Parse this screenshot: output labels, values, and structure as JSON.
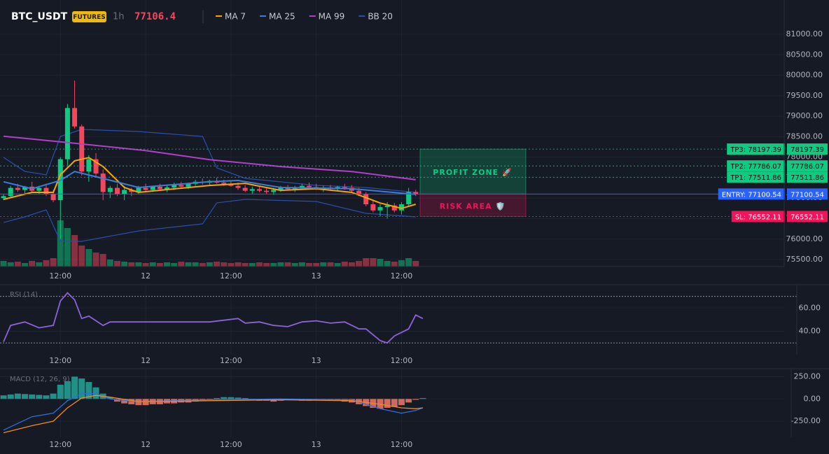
{
  "chart_data": [
    {
      "type": "candlestick",
      "title": "BTC_USDT",
      "badge": "FUTURES",
      "interval": "1h",
      "last_price": 77106.4,
      "up_color": "#0ecb81",
      "down_color": "#f6465d",
      "xlim": [
        -0.5,
        109.85
      ],
      "xticks": [
        {
          "value": 8,
          "label": "12:00"
        },
        {
          "value": 20,
          "label": "12"
        },
        {
          "value": 32,
          "label": "12:00"
        },
        {
          "value": 44,
          "label": "13"
        },
        {
          "value": 56,
          "label": "12:00"
        }
      ],
      "ylim": [
        75330,
        81837
      ],
      "yticks": [
        {
          "value": 75500,
          "label": "75500.00"
        },
        {
          "value": 76000,
          "label": "76000.00"
        },
        {
          "value": 76500,
          "label": "76500.00"
        },
        {
          "value": 77000,
          "label": "77000.00"
        },
        {
          "value": 77500,
          "label": "77500.00"
        },
        {
          "value": 78000,
          "label": "78000.00"
        },
        {
          "value": 78500,
          "label": "78500.00"
        },
        {
          "value": 79000,
          "label": "79000.00"
        },
        {
          "value": 79500,
          "label": "79500.00"
        },
        {
          "value": 80000,
          "label": "80000.00"
        },
        {
          "value": 80500,
          "label": "80500.00"
        },
        {
          "value": 81000,
          "label": "81000.00"
        }
      ],
      "ohlc": [
        [
          77000,
          77100,
          76950,
          77050
        ],
        [
          77050,
          77300,
          77000,
          77250
        ],
        [
          77250,
          77350,
          77150,
          77200
        ],
        [
          77200,
          77300,
          77100,
          77280
        ],
        [
          77280,
          77400,
          77150,
          77180
        ],
        [
          77180,
          77300,
          77100,
          77250
        ],
        [
          77250,
          77350,
          77050,
          77100
        ],
        [
          77100,
          77200,
          76900,
          76950
        ],
        [
          76950,
          78000,
          76000,
          77950
        ],
        [
          77950,
          79300,
          77800,
          79200
        ],
        [
          79200,
          79870,
          78700,
          78750
        ],
        [
          78750,
          78800,
          77550,
          77650
        ],
        [
          77650,
          78050,
          77400,
          77950
        ],
        [
          77950,
          78100,
          77500,
          77600
        ],
        [
          77600,
          77700,
          76950,
          77150
        ],
        [
          77150,
          77300,
          77000,
          77250
        ],
        [
          77250,
          77350,
          77050,
          77100
        ],
        [
          77100,
          77300,
          76950,
          77200
        ],
        [
          77200,
          77250,
          77050,
          77150
        ],
        [
          77150,
          77300,
          77100,
          77250
        ],
        [
          77250,
          77350,
          77150,
          77200
        ],
        [
          77200,
          77300,
          77150,
          77280
        ],
        [
          77280,
          77350,
          77200,
          77220
        ],
        [
          77220,
          77300,
          77150,
          77260
        ],
        [
          77260,
          77380,
          77200,
          77320
        ],
        [
          77320,
          77400,
          77250,
          77280
        ],
        [
          77280,
          77380,
          77220,
          77350
        ],
        [
          77350,
          77450,
          77300,
          77400
        ],
        [
          77400,
          77480,
          77330,
          77380
        ],
        [
          77380,
          77450,
          77300,
          77420
        ],
        [
          77420,
          77500,
          77350,
          77380
        ],
        [
          77380,
          77450,
          77300,
          77350
        ],
        [
          77350,
          77420,
          77280,
          77300
        ],
        [
          77300,
          77380,
          77200,
          77250
        ],
        [
          77250,
          77320,
          77150,
          77180
        ],
        [
          77180,
          77280,
          77100,
          77220
        ],
        [
          77220,
          77300,
          77150,
          77180
        ],
        [
          77180,
          77250,
          77100,
          77150
        ],
        [
          77150,
          77250,
          77080,
          77200
        ],
        [
          77200,
          77300,
          77150,
          77250
        ],
        [
          77250,
          77320,
          77180,
          77220
        ],
        [
          77220,
          77300,
          77150,
          77260
        ],
        [
          77260,
          77350,
          77200,
          77300
        ],
        [
          77300,
          77380,
          77250,
          77270
        ],
        [
          77270,
          77350,
          77200,
          77230
        ],
        [
          77230,
          77300,
          77150,
          77260
        ],
        [
          77260,
          77320,
          77200,
          77240
        ],
        [
          77240,
          77300,
          77180,
          77270
        ],
        [
          77270,
          77350,
          77200,
          77250
        ],
        [
          77250,
          77320,
          77150,
          77180
        ],
        [
          77180,
          77250,
          77050,
          77100
        ],
        [
          77100,
          77150,
          76800,
          76850
        ],
        [
          76850,
          76950,
          76650,
          76700
        ],
        [
          76700,
          76850,
          76550,
          76780
        ],
        [
          76780,
          76900,
          76500,
          76820
        ],
        [
          76820,
          76880,
          76650,
          76700
        ],
        [
          76700,
          76900,
          76600,
          76850
        ],
        [
          76850,
          77250,
          76800,
          77150
        ],
        [
          77150,
          77200,
          77050,
          77100
        ]
      ],
      "volume": [
        8,
        6,
        7,
        5,
        8,
        6,
        9,
        12,
        66,
        55,
        45,
        30,
        25,
        20,
        18,
        10,
        8,
        7,
        6,
        6,
        5,
        6,
        5,
        6,
        5,
        7,
        6,
        6,
        5,
        6,
        7,
        6,
        5,
        6,
        5,
        5,
        6,
        5,
        5,
        6,
        6,
        5,
        6,
        5,
        5,
        6,
        6,
        5,
        7,
        6,
        8,
        12,
        12,
        11,
        8,
        7,
        9,
        12,
        8
      ],
      "volume_lim": [
        0,
        100
      ],
      "indicators": [
        {
          "name": "MA 7",
          "color": "#f7a600",
          "x": [
            0,
            4,
            7,
            8,
            10,
            12,
            14,
            17,
            19,
            29,
            34,
            39,
            44,
            49,
            53,
            56,
            58
          ],
          "values": [
            76970,
            77140,
            77140,
            77570,
            77910,
            77990,
            77770,
            77260,
            77140,
            77310,
            77360,
            77190,
            77230,
            77140,
            76880,
            76750,
            76850
          ]
        },
        {
          "name": "MA 25",
          "color": "#3b7ddd",
          "x": [
            0,
            4,
            8,
            10,
            14,
            19,
            29,
            33,
            39,
            49,
            58
          ],
          "values": [
            77400,
            77230,
            77430,
            77650,
            77480,
            77260,
            77400,
            77430,
            77260,
            77230,
            77090
          ]
        },
        {
          "name": "MA 99",
          "color": "#b040c8",
          "x": [
            0,
            10,
            20,
            29,
            39,
            49,
            58
          ],
          "values": [
            78510,
            78340,
            78160,
            77940,
            77770,
            77650,
            77450
          ]
        }
      ],
      "bb": {
        "name": "BB 20",
        "color": "#2a4fa8",
        "x": [
          0,
          3,
          6,
          8,
          11,
          19,
          28,
          30,
          34,
          44,
          51,
          58
        ],
        "upper": [
          77994,
          77652,
          77567,
          78506,
          78677,
          78626,
          78506,
          77738,
          77482,
          77311,
          77259,
          77140
        ],
        "lower": [
          76405,
          76542,
          76713,
          75944,
          75944,
          76200,
          76371,
          76884,
          76969,
          76918,
          76628,
          76542
        ]
      },
      "levels": [
        {
          "label": "TP3: 78197.39",
          "value": 78197.39,
          "color": "#0ecb81"
        },
        {
          "label": "TP2: 77786.07",
          "value": 77786.07,
          "color": "#0ecb81"
        },
        {
          "label": "TP1: 77511.86",
          "value": 77511.86,
          "color": "#0ecb81"
        },
        {
          "label": "ENTRY: 77100.54",
          "value": 77100.54,
          "color": "#2962ff"
        },
        {
          "label": "SL: 76552.11",
          "value": 76552.11,
          "color": "#f0145a"
        }
      ],
      "zones": [
        {
          "label": "PROFIT ZONE 🚀",
          "color": "#0ecb81"
        },
        {
          "label": "RISK AREA 🛡️",
          "color": "#f0145a"
        }
      ]
    },
    {
      "type": "line",
      "title": "RSI (14)",
      "color": "#8e63d6",
      "xlim": [
        -0.5,
        109.85
      ],
      "xticks": [
        {
          "value": 8,
          "label": "12:00"
        },
        {
          "value": 20,
          "label": "12"
        },
        {
          "value": 32,
          "label": "12:00"
        },
        {
          "value": 44,
          "label": "13"
        },
        {
          "value": 56,
          "label": "12:00"
        }
      ],
      "ylim": [
        20.5,
        80
      ],
      "yticks": [
        {
          "value": 40,
          "label": "40.00"
        },
        {
          "value": 60,
          "label": "60.00"
        }
      ],
      "bands": [
        30,
        70
      ],
      "x": [
        0,
        1,
        3,
        5,
        7,
        8,
        9,
        10,
        11,
        12,
        14,
        15,
        19,
        24,
        29,
        33,
        34,
        36,
        38,
        40,
        42,
        44,
        46,
        48,
        50,
        51,
        53,
        54,
        55,
        57,
        58,
        59
      ],
      "values": [
        31,
        45,
        48,
        43,
        45,
        66,
        73,
        67,
        51,
        53,
        45,
        48,
        48,
        48,
        48,
        51,
        47,
        48,
        45,
        44,
        48,
        49,
        47,
        48,
        42,
        42,
        32,
        30,
        36,
        42,
        54,
        51
      ]
    },
    {
      "type": "macd",
      "title": "MACD (12, 26, 9)",
      "xlim": [
        -0.5,
        109.85
      ],
      "xticks": [
        {
          "value": 8,
          "label": "12:00"
        },
        {
          "value": 20,
          "label": "12"
        },
        {
          "value": 32,
          "label": "12:00"
        },
        {
          "value": 44,
          "label": "13"
        },
        {
          "value": 56,
          "label": "12:00"
        }
      ],
      "ylim": [
        -430,
        340
      ],
      "yticks": [
        {
          "value": -250,
          "label": "-250.00"
        },
        {
          "value": 0,
          "label": "0.00"
        },
        {
          "value": 250,
          "label": "250.00"
        }
      ],
      "histogram": [
        40,
        50,
        60,
        55,
        50,
        45,
        40,
        60,
        160,
        200,
        250,
        230,
        190,
        130,
        60,
        20,
        -30,
        -50,
        -60,
        -70,
        -70,
        -60,
        -60,
        -50,
        -50,
        -40,
        -40,
        -30,
        -20,
        -10,
        10,
        20,
        20,
        15,
        10,
        -10,
        -20,
        -20,
        -30,
        -20,
        -10,
        -10,
        -20,
        -20,
        -10,
        -10,
        -20,
        -20,
        -30,
        -40,
        -60,
        -80,
        -100,
        -110,
        -100,
        -90,
        -70,
        -40,
        -10,
        10
      ],
      "up_color": "#26a69a",
      "down_color": "#ef7a68",
      "macd": {
        "color": "#2f6ee0",
        "x": [
          0,
          4,
          7,
          9,
          11,
          13,
          15,
          19,
          29,
          39,
          49,
          53,
          56,
          58,
          59
        ],
        "values": [
          -350,
          -200,
          -160,
          -20,
          60,
          60,
          0,
          -30,
          -10,
          0,
          -10,
          -110,
          -160,
          -130,
          -100
        ]
      },
      "signal": {
        "color": "#f08a24",
        "x": [
          0,
          4,
          7,
          9,
          11,
          13,
          15,
          19,
          29,
          39,
          49,
          53,
          56,
          58,
          59
        ],
        "values": [
          -380,
          -300,
          -250,
          -100,
          10,
          40,
          20,
          -30,
          -20,
          -10,
          -20,
          -60,
          -100,
          -110,
          -100
        ]
      }
    }
  ]
}
